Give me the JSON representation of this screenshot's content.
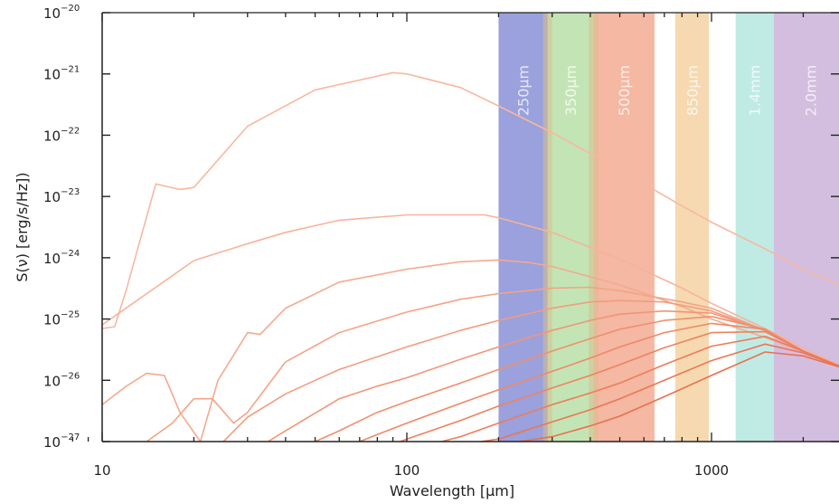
{
  "chart_data": {
    "type": "line",
    "title": "",
    "xlabel": "Wavelength [μm]",
    "ylabel": "S(ν) [erg/s/Hz])",
    "xscale": "log",
    "yscale": "log",
    "xlim": [
      8,
      2800
    ],
    "ylim": [
      1e-27,
      1e-20
    ],
    "x_ticks": [
      {
        "value": 10,
        "label": "10"
      },
      {
        "value": 100,
        "label": "100"
      },
      {
        "value": 1000,
        "label": "1000"
      }
    ],
    "y_ticks": [
      {
        "value": 1e-20,
        "base": "10",
        "exp": "−20"
      },
      {
        "value": 1e-21,
        "base": "10",
        "exp": "−21"
      },
      {
        "value": 1e-22,
        "base": "10",
        "exp": "−22"
      },
      {
        "value": 1e-23,
        "base": "10",
        "exp": "−23"
      },
      {
        "value": 1e-24,
        "base": "10",
        "exp": "−24"
      },
      {
        "value": 1e-25,
        "base": "10",
        "exp": "−25"
      },
      {
        "value": 1e-26,
        "base": "10",
        "exp": "−26"
      },
      {
        "value": 1e-27,
        "base": "10",
        "exp": "−27"
      }
    ],
    "bands": [
      {
        "label": "250μm",
        "x0": 200,
        "x1": 290,
        "color": "#8890d6"
      },
      {
        "label": "350μm",
        "x0": 290,
        "x1": 410,
        "color": "#b9e0a8"
      },
      {
        "label": "500μm",
        "x0": 410,
        "x1": 650,
        "color": "#f2ab93"
      },
      {
        "label": "850μm",
        "x0": 760,
        "x1": 980,
        "color": "#f5d2a2"
      },
      {
        "label": "1.4mm",
        "x0": 1200,
        "x1": 1600,
        "color": "#b5e8e1"
      },
      {
        "label": "2.0mm",
        "x0": 1600,
        "x1": 2800,
        "color": "#cbb3da"
      }
    ],
    "overlap_color": "#d8c08e",
    "series": [
      {
        "color": "#f7b8a0",
        "x": [
          8,
          10,
          11,
          12,
          15,
          18,
          20,
          30,
          50,
          90,
          100,
          150,
          200,
          300,
          500,
          800,
          1000,
          1500,
          2000,
          2800
        ],
        "y": [
          1.5e-25,
          7e-26,
          7.5e-26,
          3e-25,
          1.6e-23,
          1.3e-23,
          1.4e-23,
          1.4e-22,
          5.5e-22,
          1.05e-21,
          1e-21,
          6e-22,
          3e-22,
          1.1e-22,
          2.7e-23,
          7e-24,
          3.8e-24,
          1.4e-24,
          6.5e-25,
          3.2e-25
        ]
      },
      {
        "color": "#f7b39a",
        "x": [
          8,
          10,
          20,
          30,
          40,
          60,
          100,
          180,
          200,
          300,
          500,
          800,
          1000,
          1500,
          2000,
          2800
        ],
        "y": [
          3e-26,
          8e-26,
          9e-25,
          1.7e-24,
          2.6e-24,
          4.1e-24,
          5e-24,
          5e-24,
          4.5e-24,
          2.6e-24,
          9.5e-25,
          3.2e-25,
          1.8e-25,
          7e-26,
          3.4e-26,
          1.5e-26
        ]
      },
      {
        "color": "#f5a98e",
        "x": [
          9,
          10,
          12,
          14,
          16,
          18,
          21,
          24,
          30,
          33,
          40,
          60,
          100,
          150,
          200,
          250,
          300,
          500,
          800,
          1000,
          1500,
          2000,
          2800
        ],
        "y": [
          1e-27,
          4e-27,
          8e-27,
          1.3e-26,
          1.2e-26,
          3e-27,
          1e-27,
          1e-26,
          6e-26,
          5.6e-26,
          1.5e-25,
          4e-25,
          6.5e-25,
          8.6e-25,
          9.2e-25,
          8.4e-25,
          7.2e-25,
          3.6e-25,
          1.6e-25,
          1e-25,
          5e-26,
          2.9e-26,
          1.5e-26
        ]
      },
      {
        "color": "#f4a386",
        "x": [
          14,
          17,
          20,
          23,
          27,
          30,
          40,
          60,
          100,
          150,
          200,
          300,
          400,
          500,
          800,
          1000,
          1500,
          2000,
          2800
        ],
        "y": [
          1e-27,
          2e-27,
          5e-27,
          5e-27,
          2e-27,
          3e-27,
          2e-26,
          6e-26,
          1.3e-25,
          2.1e-25,
          2.6e-25,
          3.2e-25,
          3.3e-25,
          2.9e-25,
          1.9e-25,
          1.5e-25,
          6.5e-26,
          2.9e-26,
          1.5e-26
        ]
      },
      {
        "color": "#f39c7e",
        "x": [
          25,
          30,
          40,
          50,
          60,
          100,
          150,
          200,
          300,
          400,
          500,
          700,
          1000,
          1500,
          2000,
          2800
        ],
        "y": [
          1e-27,
          2.5e-27,
          6e-27,
          1e-26,
          1.5e-26,
          3.5e-26,
          6.5e-26,
          9.5e-26,
          1.5e-25,
          1.9e-25,
          2e-25,
          1.9e-25,
          1.35e-25,
          6.5e-26,
          2.9e-26,
          1.5e-26
        ]
      },
      {
        "color": "#f29576",
        "x": [
          35,
          40,
          60,
          80,
          100,
          150,
          200,
          300,
          400,
          500,
          700,
          1000,
          1500,
          2000,
          2800
        ],
        "y": [
          1e-27,
          1.5e-27,
          5e-27,
          8e-27,
          1.1e-26,
          2.2e-26,
          3.5e-26,
          6.5e-26,
          9.5e-26,
          1.2e-25,
          1.35e-25,
          1.25e-25,
          6.5e-26,
          2.9e-26,
          1.5e-26
        ]
      },
      {
        "color": "#f18e6e",
        "x": [
          50,
          60,
          80,
          100,
          150,
          200,
          300,
          400,
          500,
          700,
          1000,
          1500,
          2000,
          2800
        ],
        "y": [
          1e-27,
          1.5e-27,
          3e-27,
          4.5e-27,
          9e-27,
          1.5e-26,
          3e-26,
          4.8e-26,
          6.8e-26,
          9.5e-26,
          1.1e-25,
          6.8e-26,
          3e-26,
          1.5e-26
        ]
      },
      {
        "color": "#f08866",
        "x": [
          70,
          80,
          100,
          150,
          200,
          300,
          400,
          500,
          700,
          1000,
          1500,
          2000,
          2800
        ],
        "y": [
          1e-27,
          1.3e-27,
          2e-27,
          4.2e-27,
          7e-27,
          1.4e-26,
          2.3e-26,
          3.5e-26,
          6e-26,
          8.5e-26,
          6.8e-26,
          3e-26,
          1.5e-26
        ]
      },
      {
        "color": "#ef8260",
        "x": [
          95,
          100,
          150,
          200,
          300,
          400,
          500,
          700,
          1000,
          1500,
          2000,
          2800
        ],
        "y": [
          1e-27,
          1.1e-27,
          2.2e-27,
          3.8e-27,
          7.5e-27,
          1.2e-26,
          1.8e-26,
          3.4e-26,
          6e-26,
          6.2e-26,
          3e-26,
          1.5e-26
        ]
      },
      {
        "color": "#ee7c5a",
        "x": [
          130,
          150,
          200,
          300,
          400,
          500,
          700,
          1000,
          1500,
          2000,
          2800
        ],
        "y": [
          1e-27,
          1.2e-27,
          2e-27,
          4e-27,
          6.2e-27,
          9e-27,
          1.8e-26,
          3.6e-26,
          5.2e-26,
          3e-26,
          1.5e-26
        ]
      },
      {
        "color": "#ec7654",
        "x": [
          175,
          200,
          300,
          400,
          500,
          700,
          1000,
          1500,
          2000,
          2800
        ],
        "y": [
          1e-27,
          1.1e-27,
          2.1e-27,
          3.3e-27,
          5e-27,
          1e-26,
          2.1e-26,
          3.9e-26,
          2.8e-26,
          1.5e-26
        ]
      },
      {
        "color": "#ea704e",
        "x": [
          235,
          300,
          400,
          500,
          700,
          1000,
          1500,
          2000,
          2800
        ],
        "y": [
          1e-27,
          1.2e-27,
          1.8e-27,
          2.6e-27,
          5.4e-27,
          1.2e-26,
          2.9e-26,
          2.5e-26,
          1.5e-26
        ]
      }
    ]
  }
}
